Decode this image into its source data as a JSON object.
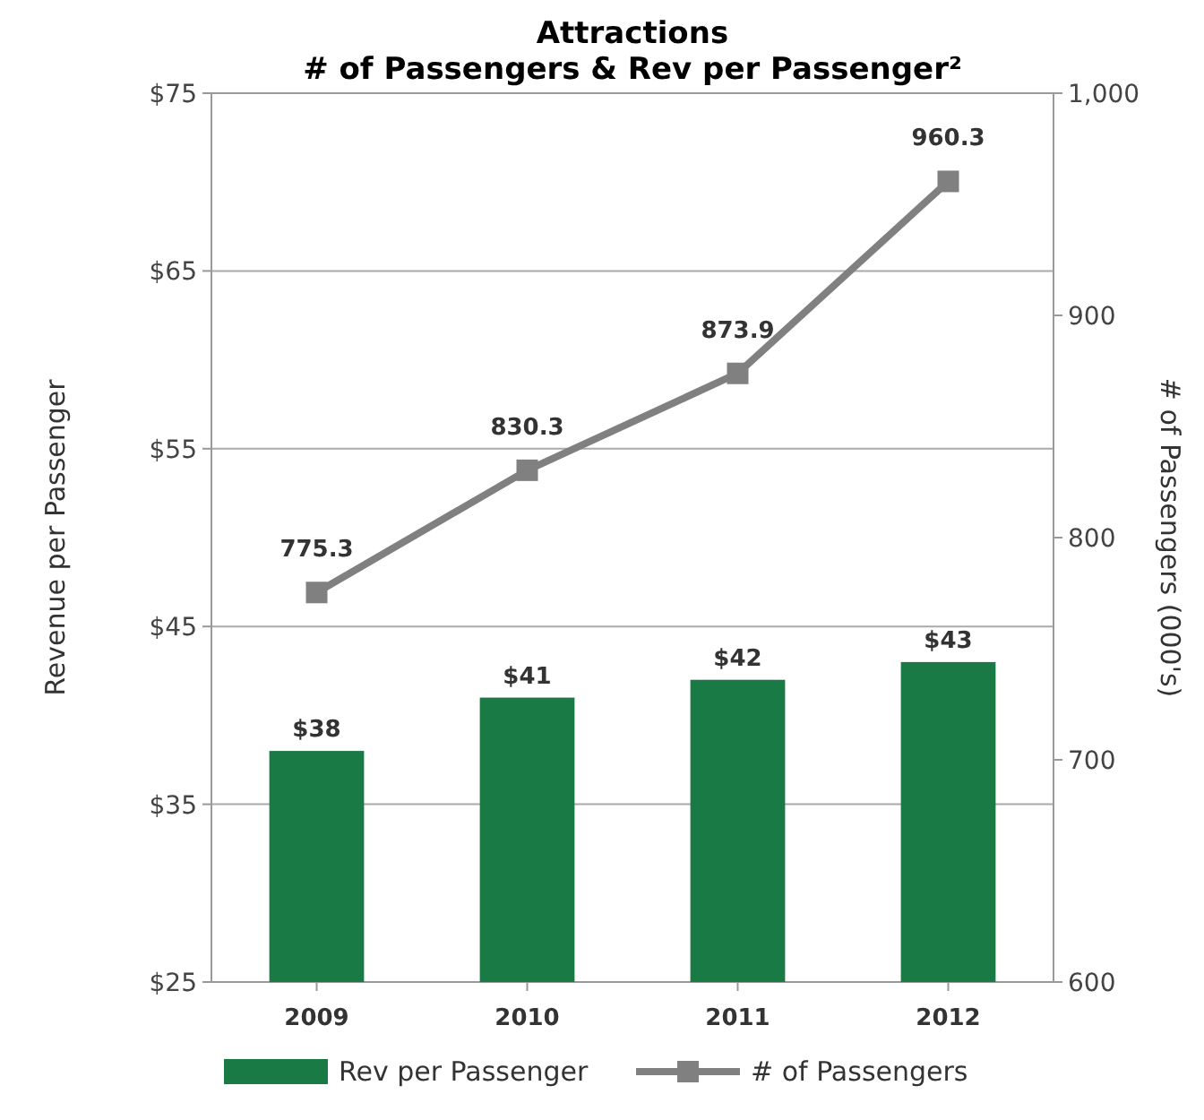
{
  "chart_data": {
    "type": "bar",
    "title": "Attractions",
    "subtitle": "# of Passengers & Rev per Passenger²",
    "ylabel": "Revenue per Passenger",
    "y2label": "# of Passengers (000's)",
    "categories": [
      "2009",
      "2010",
      "2011",
      "2012"
    ],
    "series": [
      {
        "name": "Rev per Passenger",
        "color": "#1a7a46",
        "values": [
          38,
          41,
          42,
          43
        ],
        "value_labels": [
          "$38",
          "$41",
          "$42",
          "$43"
        ]
      },
      {
        "name": "# of Passengers",
        "type": "line",
        "axis": "y2",
        "color": "#808080",
        "values": [
          775.3,
          830.3,
          873.9,
          960.3
        ],
        "value_labels": [
          "775.3",
          "830.3",
          "873.9",
          "960.3"
        ],
        "marker": "square"
      }
    ],
    "ylim": [
      25,
      75
    ],
    "yticks": [
      {
        "value": 25,
        "label": "$25"
      },
      {
        "value": 35,
        "label": "$35"
      },
      {
        "value": 45,
        "label": "$45"
      },
      {
        "value": 55,
        "label": "$55"
      },
      {
        "value": 65,
        "label": "$65"
      },
      {
        "value": 75,
        "label": "$75"
      }
    ],
    "y2lim": [
      600,
      1000
    ],
    "y2ticks": [
      600,
      700,
      800,
      900,
      {
        "value": 1000,
        "label": "1,000"
      }
    ],
    "grid": "y",
    "legend": "bottom"
  }
}
